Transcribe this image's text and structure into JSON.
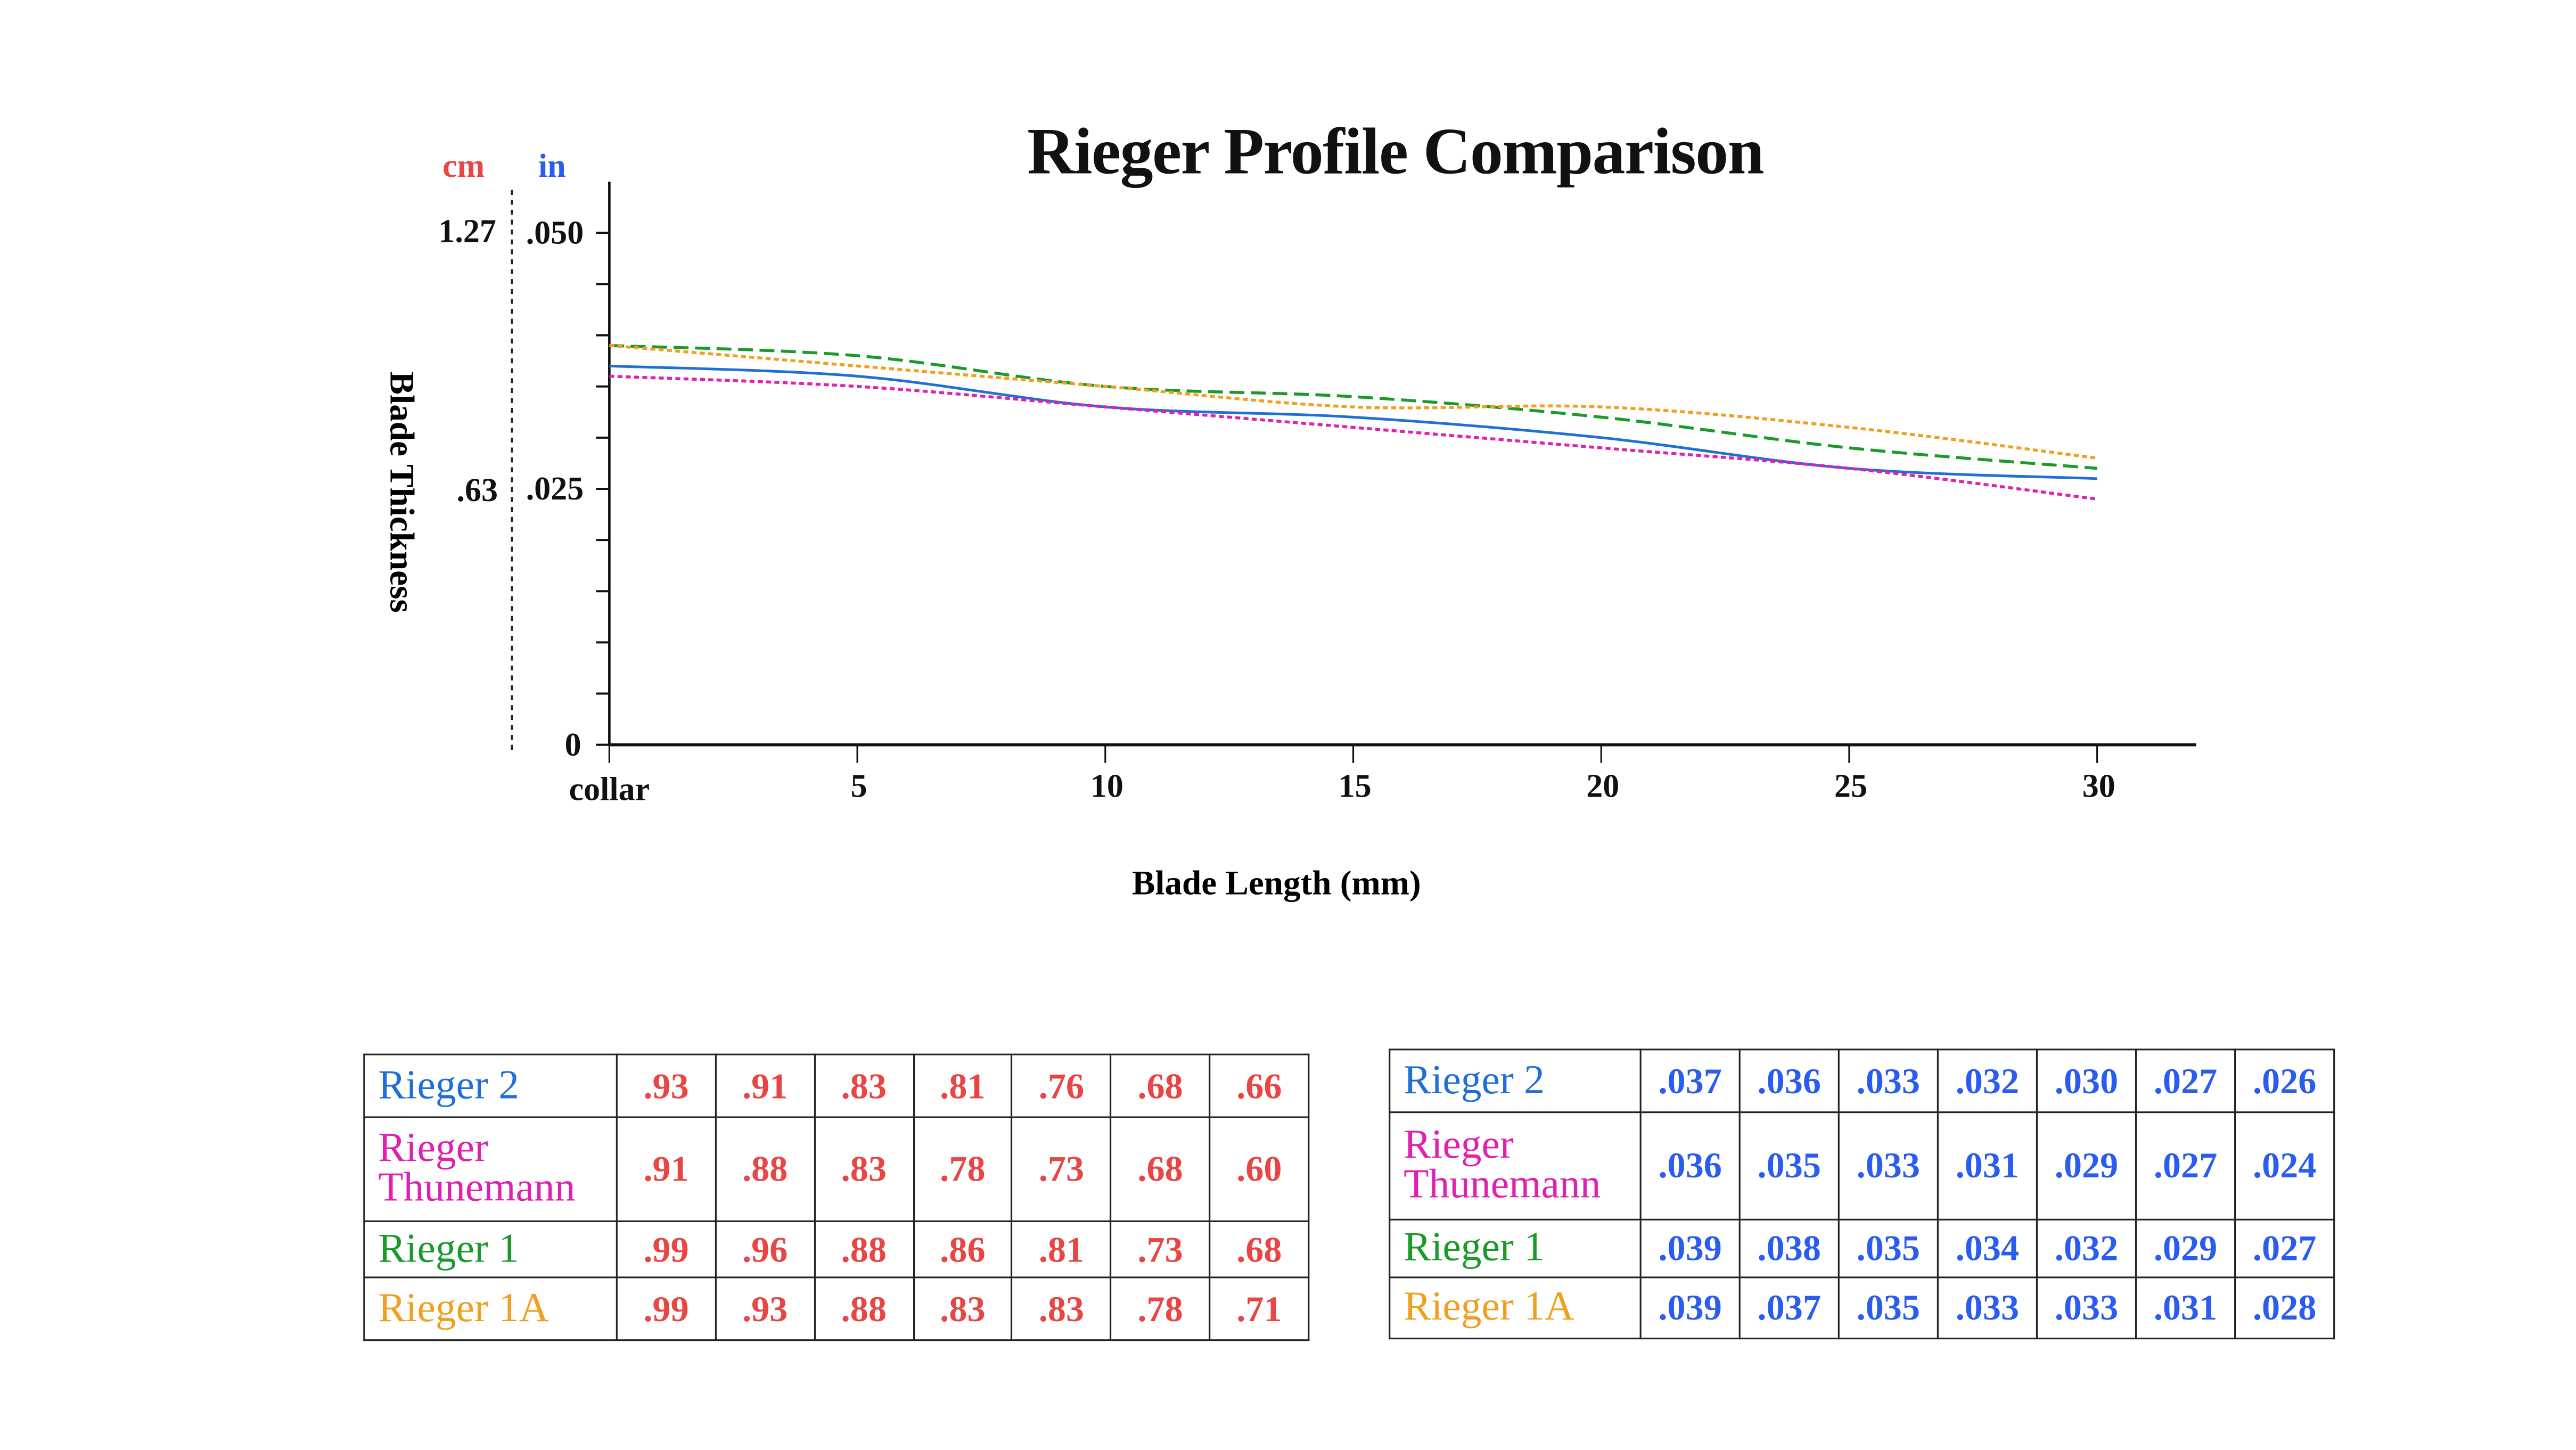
{
  "chart_data": {
    "type": "line",
    "title": "Rieger Profile Comparison",
    "xlabel": "Blade Length (mm)",
    "ylabel": "Blade Thickness",
    "y_units": [
      {
        "label": "cm",
        "color": "#e84545"
      },
      {
        "label": "in",
        "color": "#2a5cf0"
      }
    ],
    "x": [
      0,
      5,
      10,
      15,
      20,
      25,
      30
    ],
    "x_tick_labels": [
      "collar",
      "5",
      "10",
      "15",
      "20",
      "25",
      "30"
    ],
    "xlim": [
      0,
      30
    ],
    "ylim_in": [
      0,
      0.05
    ],
    "y_ticks": [
      {
        "in": 0.05,
        "in_label": ".050",
        "cm_label": "1.27"
      },
      {
        "in": 0.025,
        "in_label": ".025",
        "cm_label": ".63"
      },
      {
        "in": 0,
        "in_label": "0",
        "cm_label": ""
      }
    ],
    "y_minor_step_in": 0.005,
    "grid": false,
    "legend": "none",
    "series": [
      {
        "name": "Rieger 2",
        "color": "#1f6fd6",
        "dash": "solid",
        "values_in": [
          0.037,
          0.036,
          0.033,
          0.032,
          0.03,
          0.027,
          0.026
        ],
        "values_cm": [
          ".93",
          ".91",
          ".83",
          ".81",
          ".76",
          ".68",
          ".66"
        ],
        "values_in_label": [
          ".037",
          ".036",
          ".033",
          ".032",
          ".030",
          ".027",
          ".026"
        ]
      },
      {
        "name": "Rieger Thunemann",
        "color": "#e020b0",
        "dash": "dotted",
        "values_in": [
          0.036,
          0.035,
          0.033,
          0.031,
          0.029,
          0.027,
          0.024
        ],
        "values_cm": [
          ".91",
          ".88",
          ".83",
          ".78",
          ".73",
          ".68",
          ".60"
        ],
        "values_in_label": [
          ".036",
          ".035",
          ".033",
          ".031",
          ".029",
          ".027",
          ".024"
        ]
      },
      {
        "name": "Rieger 1",
        "color": "#1a9a2a",
        "dash": "dashed",
        "values_in": [
          0.039,
          0.038,
          0.035,
          0.034,
          0.032,
          0.029,
          0.027
        ],
        "values_cm": [
          ".99",
          ".96",
          ".88",
          ".86",
          ".81",
          ".73",
          ".68"
        ],
        "values_in_label": [
          ".039",
          ".038",
          ".035",
          ".034",
          ".032",
          ".029",
          ".027"
        ]
      },
      {
        "name": "Rieger 1A",
        "color": "#f0a020",
        "dash": "dotted",
        "values_in": [
          0.039,
          0.037,
          0.035,
          0.033,
          0.033,
          0.031,
          0.028
        ],
        "values_cm": [
          ".99",
          ".93",
          ".88",
          ".83",
          ".83",
          ".78",
          ".71"
        ],
        "values_in_label": [
          ".039",
          ".037",
          ".035",
          ".033",
          ".033",
          ".031",
          ".028"
        ]
      }
    ]
  },
  "tables": {
    "cm_color": "#e84545",
    "in_color": "#2a5cf0"
  }
}
